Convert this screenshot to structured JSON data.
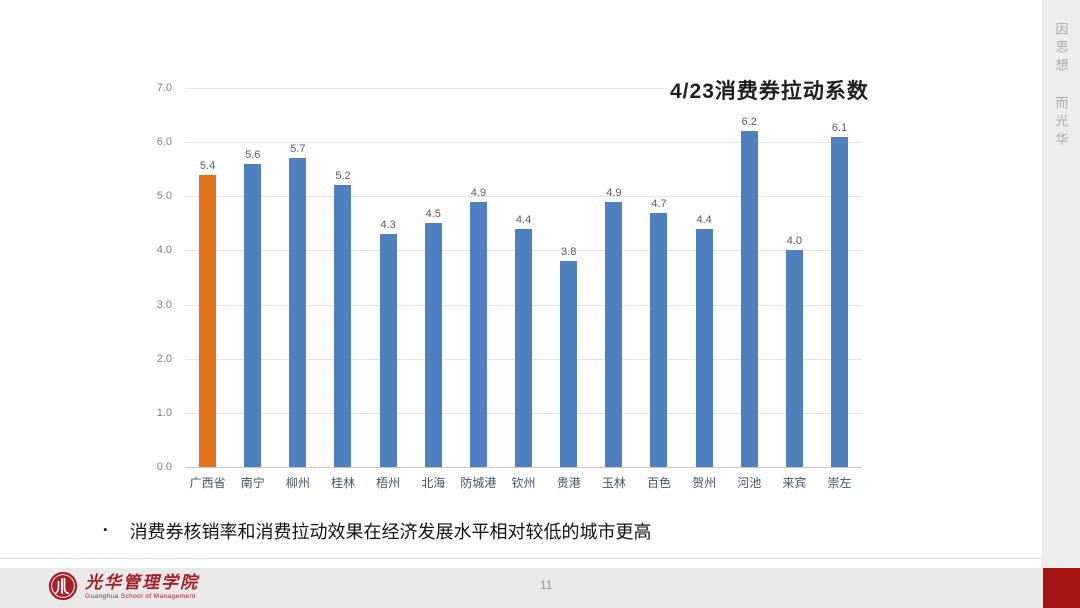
{
  "slide": {
    "page_number": "11",
    "motto_vertical": "因思想 而光华",
    "bullet_marker": "•",
    "bullet": "消费券核销率和消费拉动效果在经济发展水平相对较低的城市更高",
    "logo": {
      "name_cn": "光华管理学院",
      "name_en": "Guanghua School of Management"
    },
    "accent_colors": {
      "corner_block_red": "#a81412",
      "logo_red": "#a6202a",
      "sidebar_gray": "#ededed",
      "footer_gray": "#e9e9e9"
    }
  },
  "chart_data": {
    "type": "bar",
    "title": "4/23消费券拉动系数",
    "categories": [
      "广西省",
      "南宁",
      "柳州",
      "桂林",
      "梧州",
      "北海",
      "防城港",
      "钦州",
      "贵港",
      "玉林",
      "百色",
      "贺州",
      "河池",
      "来宾",
      "崇左"
    ],
    "values": [
      5.4,
      5.6,
      5.7,
      5.2,
      4.3,
      4.5,
      4.9,
      4.4,
      3.8,
      4.9,
      4.7,
      4.4,
      6.2,
      4.0,
      6.1
    ],
    "value_labels": [
      "5.4",
      "5.6",
      "5.7",
      "5.2",
      "4.3",
      "4.5",
      "4.9",
      "4.4",
      "3.8",
      "4.9",
      "4.7",
      "4.4",
      "6.2",
      "4.0",
      "6.1"
    ],
    "highlight_index": 0,
    "bar_color": "#4e80bd",
    "highlight_color": "#e2711d",
    "value_label_color": "#595959",
    "ylim": [
      0,
      7
    ],
    "yticks": [
      0,
      1,
      2,
      3,
      4,
      5,
      6,
      7
    ],
    "ytick_labels": [
      "0.0",
      "1.0",
      "2.0",
      "3.0",
      "4.0",
      "5.0",
      "6.0",
      "7.0"
    ],
    "grid": true,
    "legend": "none",
    "xlabel": "",
    "ylabel": ""
  }
}
